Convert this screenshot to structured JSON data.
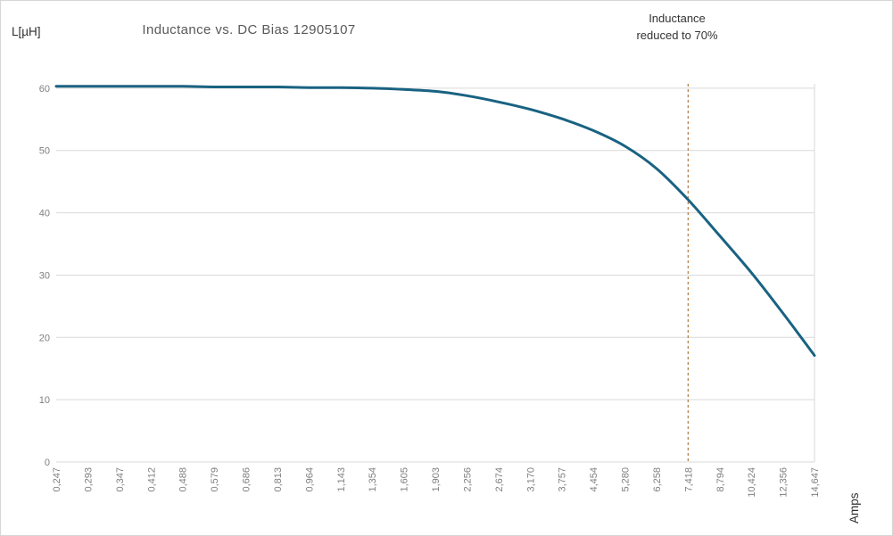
{
  "title": "Inductance vs. DC Bias 12905107",
  "y_axis_label": "L[µH]",
  "x_axis_label": "Amps",
  "annotation": {
    "line1": "Inductance",
    "line2": "reduced to 70%"
  },
  "chart_data": {
    "type": "line",
    "title": "Inductance vs. DC Bias 12905107",
    "xlabel": "Amps",
    "ylabel": "L[µH]",
    "x": [
      "0,247",
      "0,293",
      "0,347",
      "0,412",
      "0,488",
      "0,579",
      "0,686",
      "0,813",
      "0,964",
      "1,143",
      "1,354",
      "1,605",
      "1,903",
      "2,256",
      "2,674",
      "3,170",
      "3,757",
      "4,454",
      "5,280",
      "6,258",
      "7,418",
      "8,794",
      "10,424",
      "12,356",
      "14,647"
    ],
    "series": [
      {
        "name": "Inductance",
        "values": [
          60.3,
          60.3,
          60.3,
          60.3,
          60.3,
          60.2,
          60.2,
          60.2,
          60.1,
          60.1,
          60.0,
          59.8,
          59.5,
          58.8,
          57.8,
          56.6,
          55.1,
          53.2,
          50.7,
          47.1,
          42.1,
          36.3,
          30.4,
          23.9,
          17.1
        ],
        "color": "#196282",
        "stroke_width": 3
      }
    ],
    "y_ticks": [
      0,
      10,
      20,
      30,
      40,
      50,
      60
    ],
    "ylim": [
      0,
      60.7
    ],
    "grid": "horizontal-only",
    "legend": "none",
    "x_tick_rotation": -90,
    "reference_line": {
      "x_category": "7,418",
      "x_index": 20,
      "orientation": "vertical",
      "style": "dashed",
      "color": "#b5854f",
      "meaning": "Inductance reduced to 70%"
    }
  },
  "colors": {
    "curve": "#196282",
    "gridline": "#d9d9d9",
    "plot_border": "#d9d9d9",
    "reference_line": "#b5854f",
    "title_text": "#595959",
    "tick_text": "#7f7f7f",
    "label_text": "#2e2e2e",
    "background": "#ffffff"
  }
}
